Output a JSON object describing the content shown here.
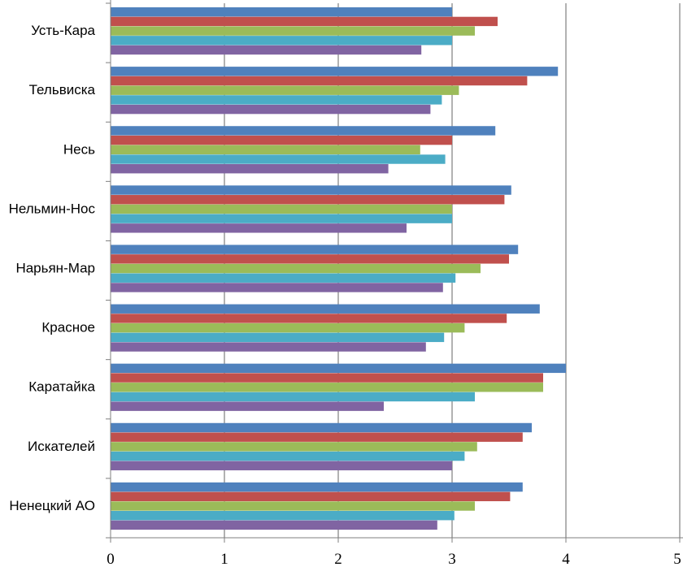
{
  "chart_data": {
    "type": "bar",
    "orientation": "horizontal",
    "categories": [
      "Усть-Кара",
      "Тельвиска",
      "Несь",
      "Нельмин-Нос",
      "Нарьян-Мар",
      "Красное",
      "Каратайка",
      "Искателей",
      "Ненецкий АО"
    ],
    "series": [
      {
        "color": "#4f81bd",
        "values": [
          3.0,
          3.93,
          3.38,
          3.52,
          3.58,
          3.77,
          4.0,
          3.7,
          3.62
        ]
      },
      {
        "color": "#c0504d",
        "values": [
          3.4,
          3.66,
          3.0,
          3.46,
          3.5,
          3.48,
          3.8,
          3.62,
          3.51
        ]
      },
      {
        "color": "#9bbb59",
        "values": [
          3.2,
          3.06,
          2.72,
          3.0,
          3.25,
          3.11,
          3.8,
          3.22,
          3.2
        ]
      },
      {
        "color": "#4bacc6",
        "values": [
          3.0,
          2.91,
          2.94,
          3.0,
          3.03,
          2.93,
          3.2,
          3.11,
          3.02
        ]
      },
      {
        "color": "#8064a2",
        "values": [
          2.73,
          2.81,
          2.44,
          2.6,
          2.92,
          2.77,
          2.4,
          3.0,
          2.87
        ]
      }
    ],
    "xlim": [
      0,
      5
    ],
    "xticks": [
      "0",
      "1",
      "2",
      "3",
      "4",
      "5"
    ],
    "xlabel": "",
    "ylabel": "",
    "title": "",
    "grid": "vertical major gridlines",
    "legend": "none"
  }
}
